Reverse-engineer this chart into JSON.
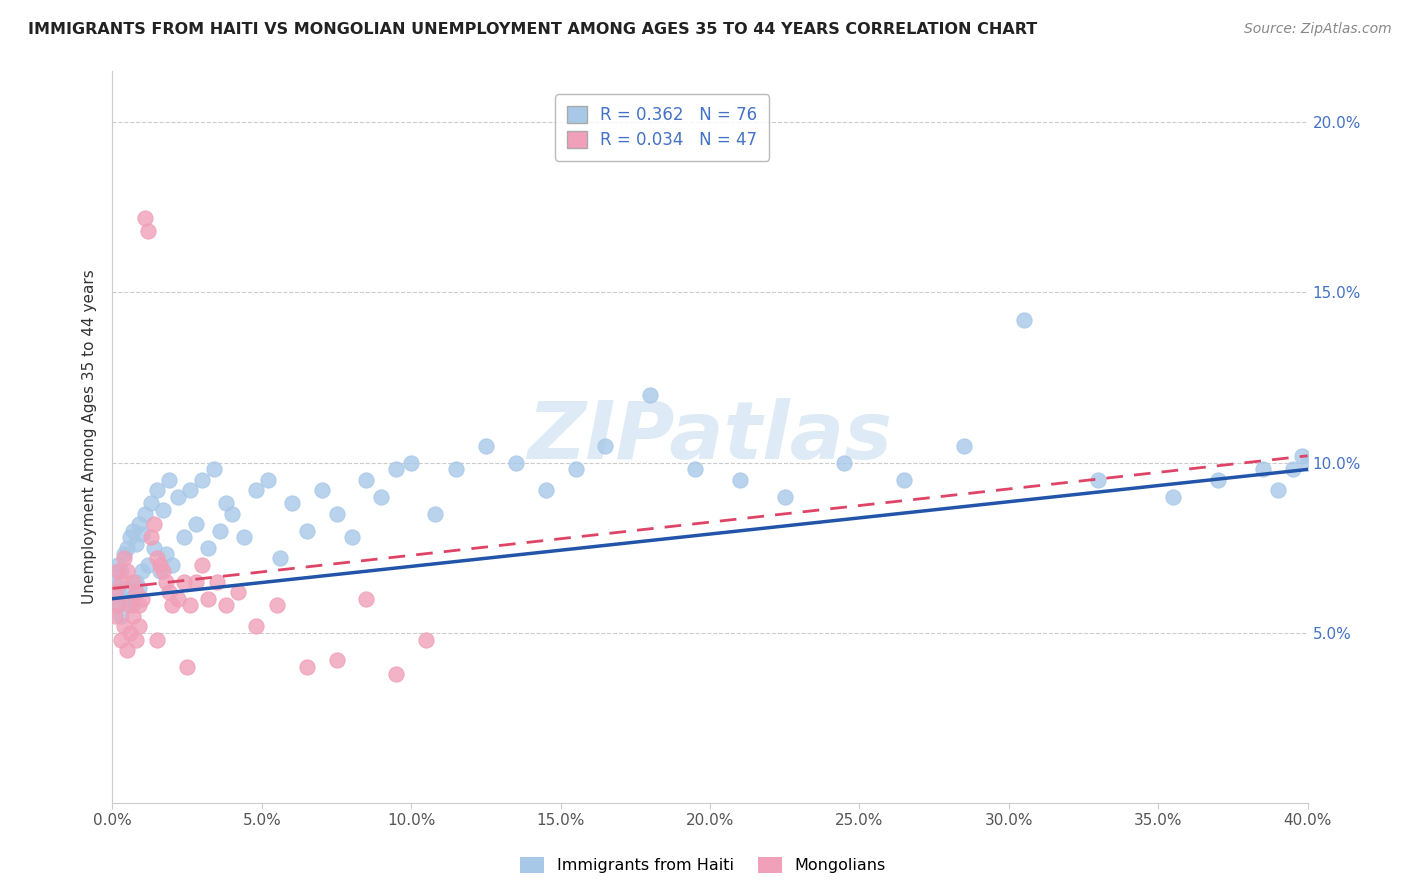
{
  "title": "IMMIGRANTS FROM HAITI VS MONGOLIAN UNEMPLOYMENT AMONG AGES 35 TO 44 YEARS CORRELATION CHART",
  "source": "Source: ZipAtlas.com",
  "ylabel": "Unemployment Among Ages 35 to 44 years",
  "xlim": [
    0.0,
    0.4
  ],
  "ylim": [
    0.0,
    0.215
  ],
  "xticks": [
    0.0,
    0.05,
    0.1,
    0.15,
    0.2,
    0.25,
    0.3,
    0.35,
    0.4
  ],
  "yticks": [
    0.05,
    0.1,
    0.15,
    0.2
  ],
  "xtick_labels": [
    "0.0%",
    "5.0%",
    "10.0%",
    "15.0%",
    "20.0%",
    "25.0%",
    "30.0%",
    "35.0%",
    "40.0%"
  ],
  "ytick_labels": [
    "5.0%",
    "10.0%",
    "15.0%",
    "20.0%"
  ],
  "legend1_label": "Immigrants from Haiti",
  "legend2_label": "Mongolians",
  "r1": 0.362,
  "n1": 76,
  "r2": 0.034,
  "n2": 47,
  "blue_color": "#a8c8e8",
  "pink_color": "#f0a0b8",
  "blue_line_color": "#2255aa",
  "pink_line_color": "#dd4466",
  "watermark": "ZIPatlas",
  "haiti_x": [
    0.001,
    0.001,
    0.002,
    0.002,
    0.003,
    0.003,
    0.004,
    0.004,
    0.005,
    0.005,
    0.006,
    0.006,
    0.007,
    0.007,
    0.008,
    0.008,
    0.009,
    0.009,
    0.01,
    0.01,
    0.011,
    0.012,
    0.013,
    0.014,
    0.015,
    0.016,
    0.017,
    0.018,
    0.019,
    0.02,
    0.022,
    0.024,
    0.026,
    0.028,
    0.03,
    0.032,
    0.034,
    0.036,
    0.038,
    0.04,
    0.044,
    0.048,
    0.052,
    0.056,
    0.06,
    0.065,
    0.07,
    0.075,
    0.08,
    0.085,
    0.09,
    0.095,
    0.1,
    0.108,
    0.115,
    0.125,
    0.135,
    0.145,
    0.155,
    0.165,
    0.18,
    0.195,
    0.21,
    0.225,
    0.245,
    0.265,
    0.285,
    0.305,
    0.33,
    0.355,
    0.37,
    0.385,
    0.39,
    0.395,
    0.398,
    0.4
  ],
  "haiti_y": [
    0.065,
    0.058,
    0.07,
    0.062,
    0.068,
    0.055,
    0.073,
    0.06,
    0.075,
    0.063,
    0.078,
    0.06,
    0.08,
    0.058,
    0.076,
    0.065,
    0.082,
    0.063,
    0.079,
    0.068,
    0.085,
    0.07,
    0.088,
    0.075,
    0.092,
    0.068,
    0.086,
    0.073,
    0.095,
    0.07,
    0.09,
    0.078,
    0.092,
    0.082,
    0.095,
    0.075,
    0.098,
    0.08,
    0.088,
    0.085,
    0.078,
    0.092,
    0.095,
    0.072,
    0.088,
    0.08,
    0.092,
    0.085,
    0.078,
    0.095,
    0.09,
    0.098,
    0.1,
    0.085,
    0.098,
    0.105,
    0.1,
    0.092,
    0.098,
    0.105,
    0.12,
    0.098,
    0.095,
    0.09,
    0.1,
    0.095,
    0.105,
    0.142,
    0.095,
    0.09,
    0.095,
    0.098,
    0.092,
    0.098,
    0.102,
    0.1
  ],
  "mongolia_x": [
    0.001,
    0.001,
    0.002,
    0.002,
    0.003,
    0.003,
    0.004,
    0.004,
    0.005,
    0.005,
    0.006,
    0.006,
    0.007,
    0.007,
    0.008,
    0.008,
    0.009,
    0.009,
    0.01,
    0.011,
    0.012,
    0.013,
    0.014,
    0.015,
    0.016,
    0.017,
    0.018,
    0.019,
    0.02,
    0.022,
    0.024,
    0.026,
    0.028,
    0.03,
    0.032,
    0.035,
    0.038,
    0.042,
    0.048,
    0.055,
    0.065,
    0.075,
    0.085,
    0.095,
    0.105,
    0.015,
    0.025
  ],
  "mongolia_y": [
    0.062,
    0.055,
    0.068,
    0.058,
    0.065,
    0.048,
    0.072,
    0.052,
    0.068,
    0.045,
    0.058,
    0.05,
    0.065,
    0.055,
    0.062,
    0.048,
    0.058,
    0.052,
    0.06,
    0.172,
    0.168,
    0.078,
    0.082,
    0.072,
    0.07,
    0.068,
    0.065,
    0.062,
    0.058,
    0.06,
    0.065,
    0.058,
    0.065,
    0.07,
    0.06,
    0.065,
    0.058,
    0.062,
    0.052,
    0.058,
    0.04,
    0.042,
    0.06,
    0.038,
    0.048,
    0.048,
    0.04
  ],
  "haiti_line_x0": 0.0,
  "haiti_line_y0": 0.06,
  "haiti_line_x1": 0.4,
  "haiti_line_y1": 0.098,
  "mongolia_line_x0": 0.0,
  "mongolia_line_y0": 0.063,
  "mongolia_line_x1": 0.4,
  "mongolia_line_y1": 0.102
}
